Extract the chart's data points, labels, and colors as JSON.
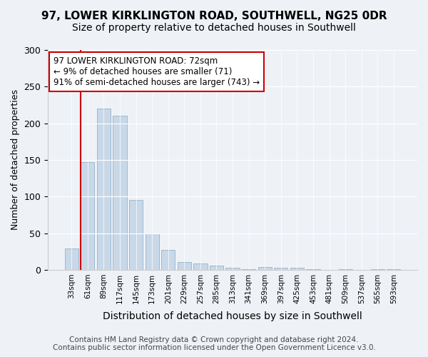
{
  "title1": "97, LOWER KIRKLINGTON ROAD, SOUTHWELL, NG25 0DR",
  "title2": "Size of property relative to detached houses in Southwell",
  "xlabel": "Distribution of detached houses by size in Southwell",
  "ylabel": "Number of detached properties",
  "bar_values": [
    29,
    147,
    220,
    210,
    95,
    50,
    27,
    11,
    9,
    6,
    3,
    1,
    4,
    3,
    3,
    1,
    0,
    1,
    0,
    1,
    1
  ],
  "bar_labels": [
    "33sqm",
    "61sqm",
    "89sqm",
    "117sqm",
    "145sqm",
    "173sqm",
    "201sqm",
    "229sqm",
    "257sqm",
    "285sqm",
    "313sqm",
    "341sqm",
    "369sqm",
    "397sqm",
    "425sqm",
    "453sqm",
    "481sqm",
    "509sqm",
    "537sqm",
    "565sqm",
    "593sqm"
  ],
  "bar_color": "#c8d8e8",
  "bar_edge_color": "#a0b8cc",
  "vline_color": "#cc0000",
  "vline_x": 0.575,
  "annotation_text": "97 LOWER KIRKLINGTON ROAD: 72sqm\n← 9% of detached houses are smaller (71)\n91% of semi-detached houses are larger (743) →",
  "annotation_box_color": "#ffffff",
  "annotation_box_edge": "#cc0000",
  "ylim": [
    0,
    300
  ],
  "yticks": [
    0,
    50,
    100,
    150,
    200,
    250,
    300
  ],
  "footer1": "Contains HM Land Registry data © Crown copyright and database right 2024.",
  "footer2": "Contains public sector information licensed under the Open Government Licence v3.0.",
  "bg_color": "#eef2f7",
  "plot_bg_color": "#eef2f7",
  "title1_fontsize": 11,
  "title2_fontsize": 10,
  "xlabel_fontsize": 10,
  "ylabel_fontsize": 9,
  "footer_fontsize": 7.5
}
